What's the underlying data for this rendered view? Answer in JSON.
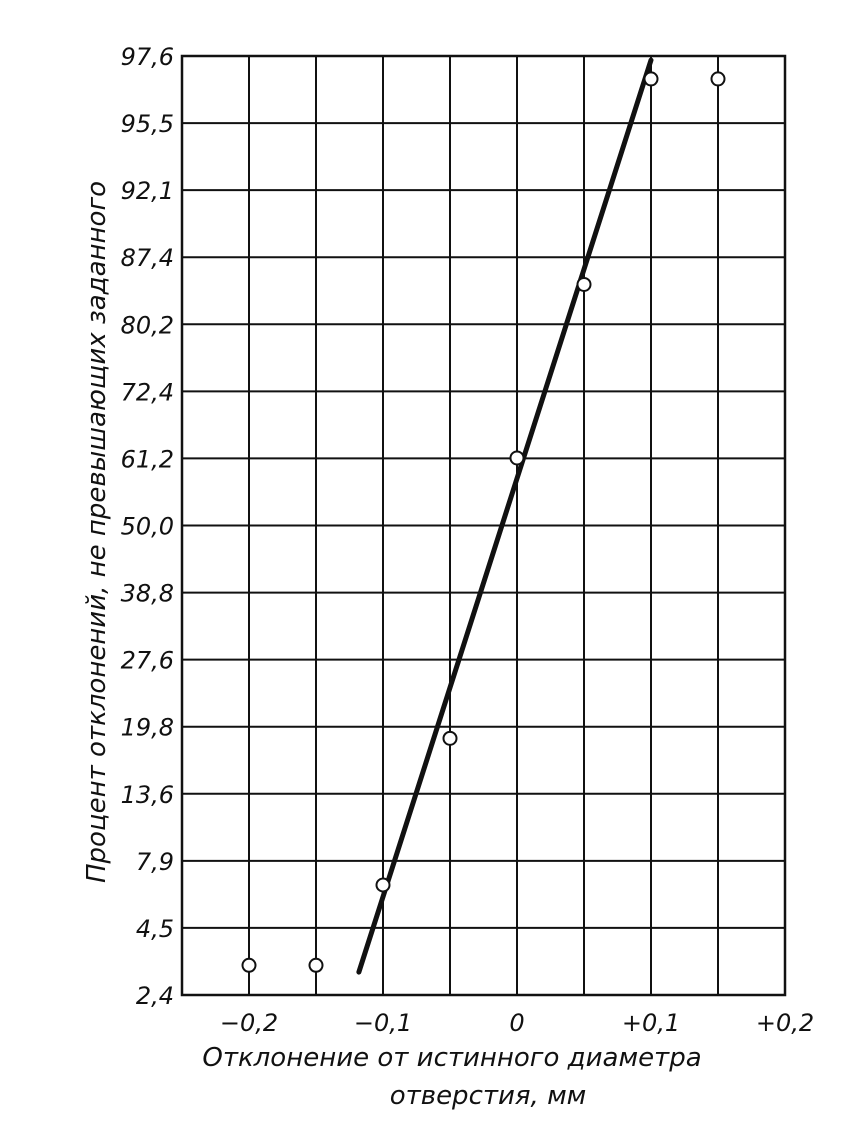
{
  "chart_data": {
    "type": "scatter",
    "xlabel_line1": "Отклонение от истинного диаметра",
    "xlabel_line2": "отверстия, мм",
    "ylabel": "Процент отклонений, не превышающих заданного",
    "x_ticks": [
      -0.2,
      -0.1,
      0,
      0.1,
      0.2
    ],
    "x_tick_labels": [
      "−0,2",
      "−0,1",
      "0",
      "+0,1",
      "+0,2"
    ],
    "xlim": [
      -0.25,
      0.2
    ],
    "y_tick_labels": [
      "2,4",
      "4,5",
      "7,9",
      "13,6",
      "19,8",
      "27,6",
      "38,8",
      "50,0",
      "61,2",
      "72,4",
      "80,2",
      "87,4",
      "92,1",
      "95,5",
      "97,6"
    ],
    "y_scale": "probability",
    "grid": true,
    "x_grid_lines": [
      -0.25,
      -0.2,
      -0.15,
      -0.1,
      -0.05,
      0,
      0.05,
      0.1,
      0.15,
      0.2
    ],
    "points": [
      {
        "x": -0.2,
        "y": 3.2
      },
      {
        "x": -0.15,
        "y": 3.2
      },
      {
        "x": -0.1,
        "y": 6.5
      },
      {
        "x": -0.05,
        "y": 18.5
      },
      {
        "x": 0.0,
        "y": 61.2
      },
      {
        "x": 0.05,
        "y": 84.5
      },
      {
        "x": 0.1,
        "y": 97.0
      },
      {
        "x": 0.15,
        "y": 97.0
      }
    ],
    "fit_line": [
      {
        "x": -0.118,
        "y": 3.0
      },
      {
        "x": 0.1,
        "y": 97.5
      }
    ],
    "colors": {
      "line": "#111111",
      "grid": "#111111",
      "marker_fill": "#ffffff"
    }
  }
}
